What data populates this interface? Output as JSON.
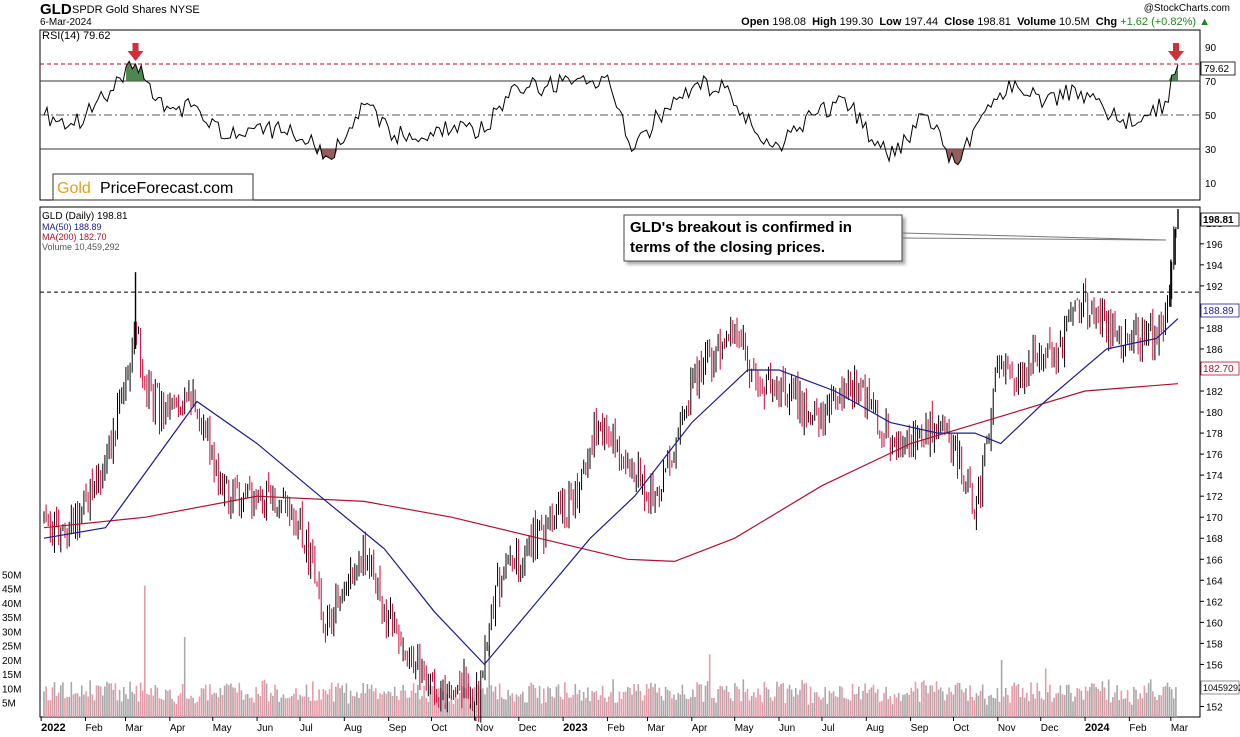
{
  "header": {
    "symbol": "GLD",
    "name": "SPDR Gold Shares NYSE",
    "date": "6-Mar-2024",
    "copyright": "@StockCharts.com",
    "open_label": "Open",
    "open": "198.08",
    "high_label": "High",
    "high": "199.30",
    "low_label": "Low",
    "low": "197.44",
    "close_label": "Close",
    "close": "198.81",
    "volume_label": "Volume",
    "volume": "10.5M",
    "chg_label": "Chg",
    "chg": "+1.62 (+0.82%)"
  },
  "colors": {
    "up_candle": "#000000",
    "down_candle": "#cc0033",
    "ma50": "#1c1c8c",
    "ma200": "#b01030",
    "volume_up": "#a8a8a8",
    "volume_down": "#e89aa8",
    "rsi_overbought_fill": "#3a7a3a",
    "rsi_oversold_fill": "#8a4a4a",
    "arrow": "#d0303a",
    "resistance_line": "#000000",
    "rsi_80_line": "#c00020",
    "logo_gold": "#e0a020"
  },
  "chart_data": [
    {
      "type": "line",
      "panel": "rsi",
      "title": "RSI(14) 79.62",
      "ylim": [
        0,
        100
      ],
      "yticks": [
        "10",
        "30",
        "50",
        "70",
        "90"
      ],
      "reference_lines": [
        80,
        70,
        50,
        30
      ],
      "last_value_badge": "79.62",
      "last_value": 79.62,
      "markers": [
        "down-arrow at Mar 2022 peak",
        "down-arrow at Mar 2024 peak"
      ],
      "series": [
        {
          "x": [
            "2022-01-03",
            "2022-01-24",
            "2022-02-14",
            "2022-03-08",
            "2022-03-28",
            "2022-04-18",
            "2022-05-09",
            "2022-05-30",
            "2022-06-20",
            "2022-07-11",
            "2022-07-21",
            "2022-08-15",
            "2022-09-05",
            "2022-09-26",
            "2022-10-17",
            "2022-11-07",
            "2022-11-28",
            "2022-12-19",
            "2023-01-09",
            "2023-01-30",
            "2023-02-20",
            "2023-03-13",
            "2023-04-03",
            "2023-04-24",
            "2023-05-15",
            "2023-06-05",
            "2023-06-26",
            "2023-07-17",
            "2023-08-07",
            "2023-08-21",
            "2023-09-11",
            "2023-10-02",
            "2023-10-23",
            "2023-11-13",
            "2023-12-04",
            "2023-12-25",
            "2024-01-15",
            "2024-02-05",
            "2024-02-26",
            "2024-03-06"
          ],
          "values": [
            50,
            44,
            60,
            80,
            52,
            56,
            36,
            42,
            40,
            32,
            25,
            56,
            38,
            36,
            44,
            40,
            68,
            66,
            70,
            72,
            30,
            54,
            68,
            66,
            40,
            34,
            50,
            60,
            32,
            26,
            50,
            22,
            52,
            70,
            58,
            66,
            52,
            44,
            58,
            79.62
          ]
        }
      ]
    },
    {
      "type": "line",
      "panel": "price",
      "title": "GLD (Daily) 198.81",
      "ylim": [
        151,
        199.5
      ],
      "yticks": [
        "152",
        "154",
        "156",
        "158",
        "160",
        "162",
        "164",
        "166",
        "168",
        "170",
        "172",
        "174",
        "176",
        "178",
        "180",
        "182",
        "184",
        "186",
        "188",
        "190",
        "192",
        "194",
        "196",
        "198"
      ],
      "xticks": [
        "2022",
        "Feb",
        "Mar",
        "Apr",
        "May",
        "Jun",
        "Jul",
        "Aug",
        "Sep",
        "Oct",
        "Nov",
        "Dec",
        "2023",
        "Feb",
        "Mar",
        "Apr",
        "May",
        "Jun",
        "Jul",
        "Aug",
        "Sep",
        "Oct",
        "Nov",
        "Dec",
        "2024",
        "Feb",
        "Mar"
      ],
      "legend": [
        {
          "name": "GLD (Daily) 198.81"
        },
        {
          "name": "MA(50) 188.89"
        },
        {
          "name": "MA(200) 182.70"
        },
        {
          "name": "Volume 10,459,292"
        }
      ],
      "resistance_level": 191.4,
      "badges": {
        "price": "198.81",
        "ma50": "188.89",
        "ma200": "182.70"
      },
      "annotation": "GLD's breakout is confirmed in terms of the closing prices.",
      "series": [
        {
          "x": [
            "2022-01-03",
            "2022-01-17",
            "2022-01-31",
            "2022-02-14",
            "2022-03-01",
            "2022-03-08",
            "2022-03-15",
            "2022-03-29",
            "2022-04-12",
            "2022-04-26",
            "2022-05-10",
            "2022-05-24",
            "2022-06-07",
            "2022-06-21",
            "2022-07-05",
            "2022-07-19",
            "2022-08-02",
            "2022-08-16",
            "2022-08-30",
            "2022-09-13",
            "2022-09-27",
            "2022-10-11",
            "2022-10-25",
            "2022-11-03",
            "2022-11-15",
            "2022-11-29",
            "2022-12-13",
            "2022-12-27",
            "2023-01-10",
            "2023-01-24",
            "2023-02-07",
            "2023-02-21",
            "2023-03-07",
            "2023-03-21",
            "2023-04-04",
            "2023-04-18",
            "2023-05-02",
            "2023-05-16",
            "2023-05-30",
            "2023-06-13",
            "2023-06-27",
            "2023-07-11",
            "2023-07-25",
            "2023-08-08",
            "2023-08-22",
            "2023-09-05",
            "2023-09-19",
            "2023-10-03",
            "2023-10-17",
            "2023-10-31",
            "2023-11-14",
            "2023-11-28",
            "2023-12-12",
            "2023-12-26",
            "2024-01-09",
            "2024-01-23",
            "2024-02-06",
            "2024-02-20",
            "2024-02-28",
            "2024-03-01",
            "2024-03-06"
          ],
          "values": [
            169,
            168,
            171,
            174,
            183,
            189,
            182,
            180,
            182,
            178,
            172,
            172,
            172,
            171,
            168,
            160,
            164,
            166,
            161,
            158,
            155,
            153,
            154,
            153,
            163,
            166,
            168,
            170,
            172,
            179,
            177,
            174,
            171,
            178,
            184,
            186,
            187,
            183,
            182,
            181,
            179,
            182,
            182,
            179,
            177,
            178,
            179,
            176,
            170,
            184,
            183,
            186,
            185,
            191,
            189,
            187,
            187,
            187,
            189,
            194,
            198.81
          ]
        },
        {
          "name": "MA(50) 188.89",
          "x": [
            "2022-01-03",
            "2022-02-15",
            "2022-04-04",
            "2022-04-20",
            "2022-06-01",
            "2022-07-15",
            "2022-08-29",
            "2022-10-03",
            "2022-11-07",
            "2022-12-14",
            "2023-01-20",
            "2023-02-20",
            "2023-04-01",
            "2023-05-10",
            "2023-06-01",
            "2023-07-10",
            "2023-08-18",
            "2023-09-20",
            "2023-10-16",
            "2023-11-03",
            "2023-12-04",
            "2024-01-16",
            "2024-02-20",
            "2024-03-06"
          ],
          "values": [
            168,
            169,
            178,
            181,
            177,
            172,
            167,
            161,
            156,
            162,
            168,
            172,
            179,
            184,
            184,
            182,
            179,
            178,
            178,
            177,
            181,
            186,
            187,
            188.89
          ]
        },
        {
          "name": "MA(200) 182.70",
          "x": [
            "2022-01-03",
            "2022-03-15",
            "2022-06-01",
            "2022-08-15",
            "2022-10-15",
            "2022-12-15",
            "2023-02-15",
            "2023-03-20",
            "2023-05-01",
            "2023-07-01",
            "2023-09-01",
            "2023-11-01",
            "2024-01-01",
            "2024-03-06"
          ],
          "values": [
            169,
            170,
            172,
            171.5,
            170,
            168,
            166,
            165.8,
            168,
            173,
            177,
            179.5,
            182,
            182.7
          ]
        }
      ]
    },
    {
      "type": "bar",
      "panel": "volume",
      "title": "Volume 10,459,292",
      "ylim": [
        0,
        55
      ],
      "yticks": [
        "5M",
        "10M",
        "15M",
        "20M",
        "25M",
        "30M",
        "35M",
        "40M",
        "45M",
        "50M"
      ],
      "last_value_badge": "10459292",
      "annotations": [
        "spike ~46M mid-Mar 2022",
        "spike ~28M Apr 2022",
        "spike ~25M Nov 2022",
        "spike ~22M Apr 2023",
        "spike ~20M Nov 2023",
        "spike ~17M Dec 2023",
        "last bar 10.46M"
      ]
    }
  ],
  "logo": {
    "part1": "Gold",
    "part2": "PriceForecast.com"
  }
}
